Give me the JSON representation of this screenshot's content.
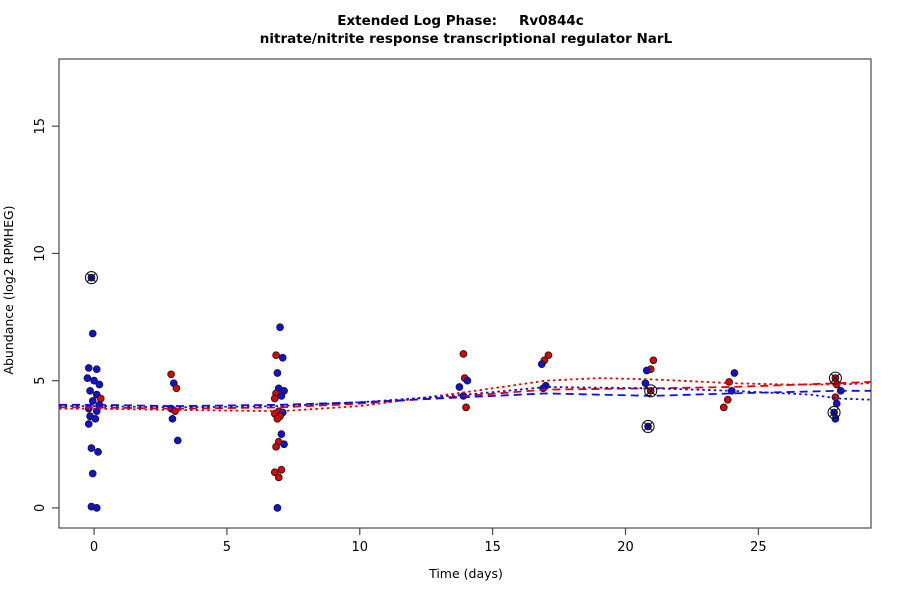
{
  "title": {
    "line1_left": "Extended Log Phase:",
    "line1_right": "Rv0844c",
    "line2": "nitrate/nitrite response transcriptional regulator NarL"
  },
  "chart_data": {
    "type": "scatter",
    "title": "Extended Log Phase:      Rv0844c",
    "subtitle": "nitrate/nitrite response transcriptional regulator NarL",
    "xlabel": "Time  (days)",
    "ylabel": "Abundance  (log2 RPMHEG)",
    "xlim": [
      -1.32,
      29.24
    ],
    "ylim": [
      -0.79,
      17.64
    ],
    "x_ticks": [
      0,
      5,
      10,
      15,
      20,
      25
    ],
    "y_ticks": [
      0,
      5,
      10,
      15
    ],
    "grid": false,
    "legend": "none",
    "colors": {
      "red": "#e10000",
      "blue": "#0f0fdf",
      "point_stroke": "#1a1a1a",
      "outlier_ring": "#111111",
      "axis": "#4a4a4a"
    },
    "points_format": [
      "day",
      "log2_abundance",
      "group(r=red,b=blue)",
      "outlier_circled(1=yes)"
    ],
    "points": [
      [
        -0.1,
        9.05,
        "b",
        1
      ],
      [
        -0.05,
        6.85,
        "b",
        0
      ],
      [
        -0.2,
        5.5,
        "b",
        0
      ],
      [
        0.1,
        5.45,
        "b",
        0
      ],
      [
        -0.25,
        5.1,
        "b",
        0
      ],
      [
        0.0,
        5.0,
        "b",
        0
      ],
      [
        0.2,
        4.85,
        "b",
        0
      ],
      [
        -0.15,
        4.6,
        "b",
        0
      ],
      [
        0.1,
        4.45,
        "b",
        0
      ],
      [
        0.25,
        4.3,
        "r",
        0
      ],
      [
        -0.05,
        4.2,
        "b",
        0
      ],
      [
        0.2,
        4.05,
        "b",
        0
      ],
      [
        -0.2,
        3.9,
        "b",
        0
      ],
      [
        0.1,
        3.8,
        "b",
        0
      ],
      [
        -0.15,
        3.6,
        "b",
        0
      ],
      [
        0.05,
        3.5,
        "b",
        0
      ],
      [
        -0.2,
        3.3,
        "b",
        0
      ],
      [
        -0.1,
        2.35,
        "b",
        0
      ],
      [
        0.15,
        2.2,
        "b",
        0
      ],
      [
        -0.05,
        1.35,
        "b",
        0
      ],
      [
        -0.1,
        0.05,
        "b",
        0
      ],
      [
        0.1,
        0.0,
        "b",
        0
      ],
      [
        2.9,
        5.25,
        "r",
        0
      ],
      [
        3.0,
        4.9,
        "b",
        0
      ],
      [
        3.1,
        4.7,
        "r",
        0
      ],
      [
        2.9,
        3.9,
        "b",
        0
      ],
      [
        3.05,
        3.8,
        "r",
        0
      ],
      [
        2.95,
        3.5,
        "b",
        0
      ],
      [
        3.15,
        2.65,
        "b",
        0
      ],
      [
        7.0,
        7.1,
        "b",
        0
      ],
      [
        6.85,
        6.0,
        "r",
        0
      ],
      [
        7.1,
        5.9,
        "b",
        0
      ],
      [
        6.9,
        5.3,
        "b",
        0
      ],
      [
        6.95,
        4.7,
        "b",
        0
      ],
      [
        7.15,
        4.6,
        "b",
        0
      ],
      [
        6.85,
        4.5,
        "r",
        0
      ],
      [
        7.05,
        4.4,
        "b",
        0
      ],
      [
        6.8,
        4.3,
        "r",
        0
      ],
      [
        6.95,
        3.8,
        "r",
        0
      ],
      [
        7.1,
        3.75,
        "b",
        0
      ],
      [
        6.8,
        3.7,
        "r",
        0
      ],
      [
        7.0,
        3.6,
        "r",
        0
      ],
      [
        6.9,
        3.5,
        "r",
        0
      ],
      [
        7.05,
        2.9,
        "b",
        0
      ],
      [
        6.95,
        2.6,
        "r",
        0
      ],
      [
        7.15,
        2.5,
        "b",
        0
      ],
      [
        6.85,
        2.4,
        "r",
        0
      ],
      [
        7.05,
        1.5,
        "r",
        0
      ],
      [
        6.8,
        1.4,
        "r",
        0
      ],
      [
        6.95,
        1.2,
        "r",
        0
      ],
      [
        6.9,
        0.0,
        "b",
        0
      ],
      [
        13.9,
        6.05,
        "r",
        0
      ],
      [
        13.95,
        5.1,
        "r",
        0
      ],
      [
        14.05,
        5.0,
        "b",
        0
      ],
      [
        13.75,
        4.75,
        "b",
        0
      ],
      [
        13.9,
        4.4,
        "b",
        0
      ],
      [
        14.0,
        3.95,
        "r",
        0
      ],
      [
        17.1,
        6.0,
        "r",
        0
      ],
      [
        16.95,
        5.8,
        "r",
        0
      ],
      [
        16.85,
        5.65,
        "b",
        0
      ],
      [
        17.0,
        4.8,
        "b",
        0
      ],
      [
        16.9,
        4.7,
        "b",
        0
      ],
      [
        21.05,
        5.8,
        "r",
        0
      ],
      [
        20.95,
        5.45,
        "r",
        0
      ],
      [
        20.8,
        5.4,
        "b",
        0
      ],
      [
        20.75,
        4.9,
        "b",
        0
      ],
      [
        20.95,
        4.6,
        "r",
        1
      ],
      [
        20.85,
        3.2,
        "b",
        1
      ],
      [
        24.1,
        5.3,
        "b",
        0
      ],
      [
        23.9,
        4.95,
        "r",
        0
      ],
      [
        24.0,
        4.6,
        "b",
        0
      ],
      [
        23.85,
        4.25,
        "r",
        0
      ],
      [
        23.7,
        3.95,
        "r",
        0
      ],
      [
        27.9,
        5.1,
        "r",
        1
      ],
      [
        27.95,
        4.85,
        "r",
        0
      ],
      [
        28.1,
        4.6,
        "b",
        0
      ],
      [
        27.9,
        4.35,
        "r",
        0
      ],
      [
        27.95,
        4.1,
        "b",
        0
      ],
      [
        27.85,
        3.75,
        "b",
        1
      ],
      [
        27.9,
        3.5,
        "b",
        0
      ]
    ],
    "series": [
      {
        "name": "red-dotted-fit",
        "color": "red",
        "dash": "dotted",
        "x": [
          -1.32,
          0,
          3,
          7,
          10,
          14,
          17,
          19,
          21,
          24,
          26,
          28,
          29.24
        ],
        "y": [
          3.9,
          3.9,
          3.85,
          3.8,
          4.0,
          4.55,
          5.0,
          5.1,
          5.05,
          4.9,
          4.85,
          4.85,
          4.9
        ]
      },
      {
        "name": "red-dashed-fit",
        "color": "red",
        "dash": "dashed",
        "x": [
          -1.32,
          0,
          3,
          7,
          10,
          14,
          17,
          21,
          24,
          28,
          29.24
        ],
        "y": [
          3.95,
          3.95,
          3.9,
          3.95,
          4.1,
          4.4,
          4.65,
          4.7,
          4.75,
          4.9,
          4.95
        ]
      },
      {
        "name": "blue-dotted-fit",
        "color": "blue",
        "dash": "dotted",
        "x": [
          -1.32,
          0,
          3,
          7,
          10,
          14,
          17,
          21,
          24,
          27,
          28,
          29.24
        ],
        "y": [
          4.0,
          4.0,
          3.95,
          4.0,
          4.15,
          4.45,
          4.75,
          4.7,
          4.6,
          4.45,
          4.3,
          4.25
        ]
      },
      {
        "name": "blue-dashed-fit",
        "color": "blue",
        "dash": "dashed",
        "x": [
          -1.32,
          0,
          3,
          7,
          10,
          14,
          17,
          21,
          24,
          28,
          29.24
        ],
        "y": [
          4.05,
          4.05,
          4.0,
          4.05,
          4.15,
          4.35,
          4.5,
          4.4,
          4.5,
          4.6,
          4.6
        ]
      }
    ]
  }
}
